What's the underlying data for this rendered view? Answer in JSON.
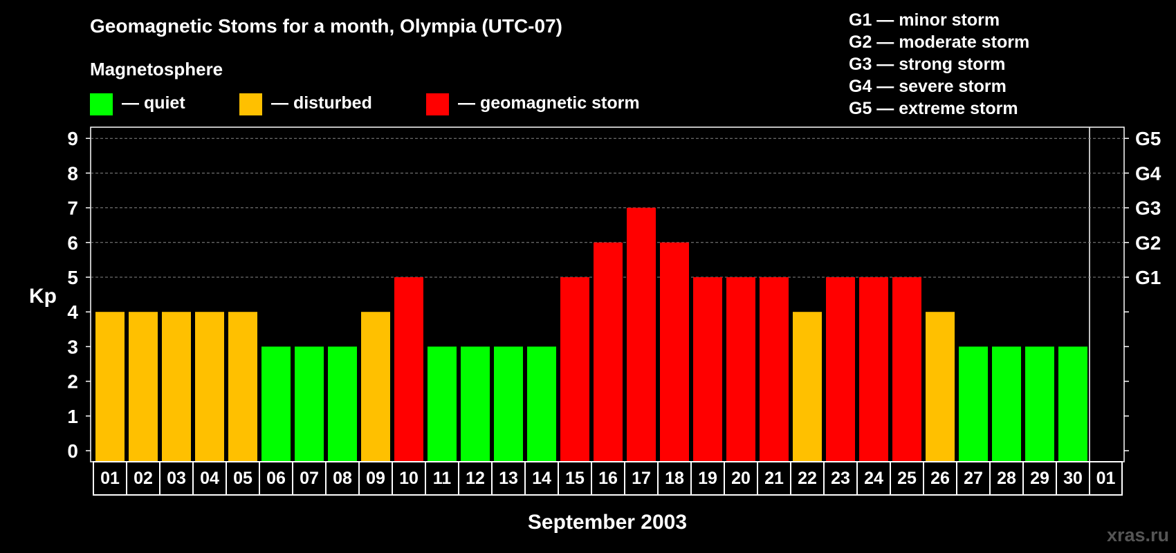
{
  "chart_data": {
    "type": "bar",
    "title": "Geomagnetic Stoms for a month, Olympia (UTC-07)",
    "legend_title": "Magnetosphere",
    "legend": [
      {
        "label": "— quiet",
        "color": "#00ff00"
      },
      {
        "label": "— disturbed",
        "color": "#ffc000"
      },
      {
        "label": "— geomagnetic storm",
        "color": "#ff0000"
      }
    ],
    "storm_scale": [
      "G1 — minor storm",
      "G2 — moderate storm",
      "G3 — strong storm",
      "G4 — severe storm",
      "G5 — extreme storm"
    ],
    "ylabel": "Kp",
    "xlabel": "September 2003",
    "ylim": [
      0,
      9
    ],
    "yticks": [
      "0",
      "1",
      "2",
      "3",
      "4",
      "5",
      "6",
      "7",
      "8",
      "9"
    ],
    "right_ticks": [
      {
        "kp": 5,
        "label": "G1"
      },
      {
        "kp": 6,
        "label": "G2"
      },
      {
        "kp": 7,
        "label": "G3"
      },
      {
        "kp": 8,
        "label": "G4"
      },
      {
        "kp": 9,
        "label": "G5"
      }
    ],
    "categories": [
      "01",
      "02",
      "03",
      "04",
      "05",
      "06",
      "07",
      "08",
      "09",
      "10",
      "11",
      "12",
      "13",
      "14",
      "15",
      "16",
      "17",
      "18",
      "19",
      "20",
      "21",
      "22",
      "23",
      "24",
      "25",
      "26",
      "27",
      "28",
      "29",
      "30",
      "01"
    ],
    "values": [
      4,
      4,
      4,
      4,
      4,
      3,
      3,
      3,
      4,
      5,
      3,
      3,
      3,
      3,
      5,
      6,
      7,
      6,
      5,
      5,
      5,
      4,
      5,
      5,
      5,
      4,
      3,
      3,
      3,
      3,
      null
    ],
    "colors": {
      "quiet": "#00ff00",
      "disturbed": "#ffc000",
      "storm": "#ff0000",
      "background": "#000000",
      "grid": "#888888"
    },
    "grid": "dashed horizontal at kp 5-9"
  },
  "watermark": "xras.ru"
}
